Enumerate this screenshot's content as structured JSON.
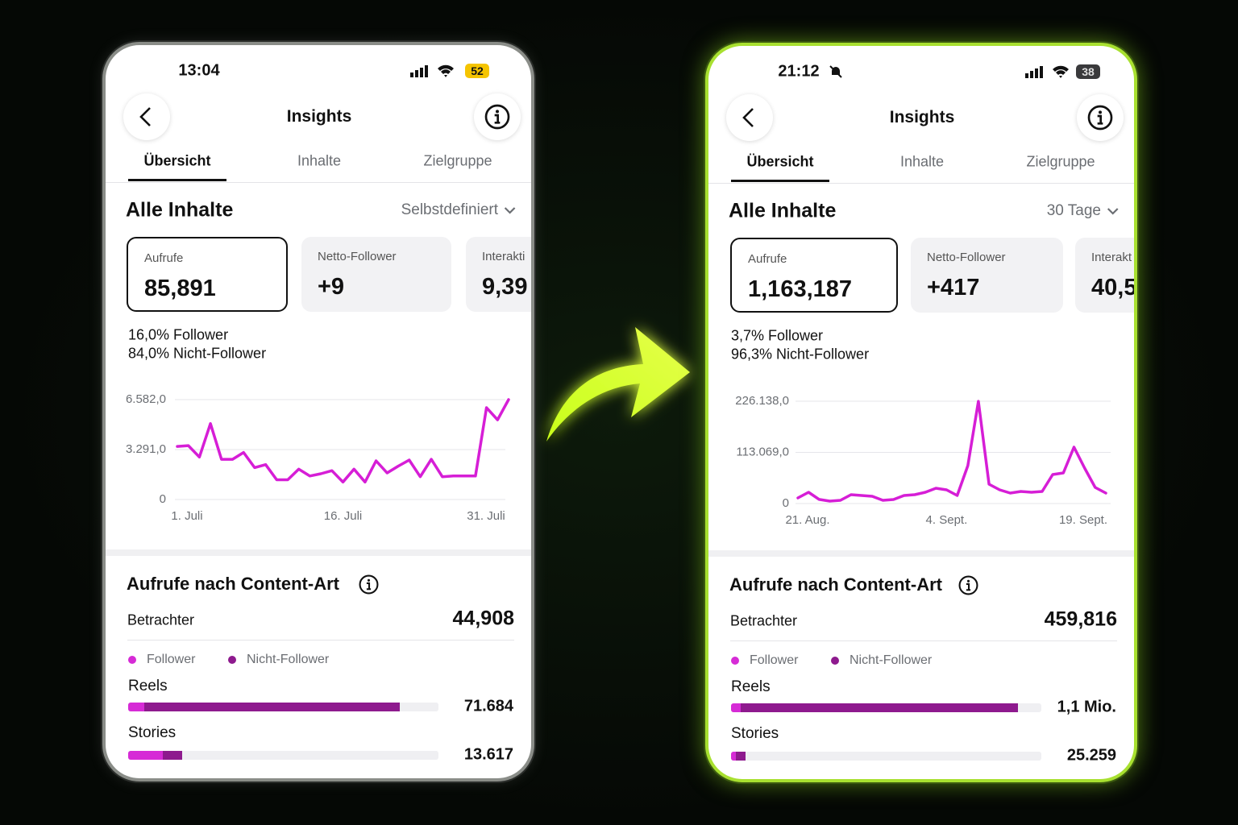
{
  "phones": [
    {
      "status": {
        "time": "13:04",
        "battery": "52"
      },
      "header": {
        "title": "Insights"
      },
      "tabs": [
        "Übersicht",
        "Inhalte",
        "Zielgruppe"
      ],
      "section": {
        "title": "Alle Inhalte",
        "filter": "Selbstdefiniert"
      },
      "cards": [
        {
          "label": "Aufrufe",
          "value": "85,891"
        },
        {
          "label": "Netto-Follower",
          "value": "+9"
        },
        {
          "label": "Interakti",
          "value": "9,39"
        }
      ],
      "audience": [
        "16,0% Follower",
        "84,0% Nicht-Follower"
      ],
      "chart": {
        "type": "line",
        "color": "#d61ed6",
        "categories": [
          "1. Juli",
          null,
          null,
          null,
          null,
          null,
          null,
          null,
          null,
          null,
          null,
          null,
          null,
          null,
          null,
          "16. Juli",
          null,
          null,
          null,
          null,
          null,
          null,
          null,
          null,
          null,
          null,
          null,
          null,
          null,
          null,
          "31. Juli"
        ],
        "values": [
          3500,
          3550,
          2800,
          5000,
          2650,
          2650,
          3100,
          2100,
          2300,
          1300,
          1300,
          2000,
          1550,
          1700,
          1900,
          1150,
          2000,
          1150,
          2550,
          1750,
          2200,
          2600,
          1500,
          2650,
          1500,
          1550,
          1550,
          1550,
          6050,
          5250,
          6582
        ],
        "ylim": [
          0,
          6582
        ],
        "yticks": [
          0,
          {
            "value": 3291,
            "label": "3.291,0"
          },
          {
            "value": 6582,
            "label": "6.582,0"
          }
        ],
        "grid": true
      },
      "content": {
        "title": "Aufrufe nach Content-Art",
        "viewers_label": "Betrachter",
        "viewers_value": "44,908",
        "legend": [
          {
            "name": "Follower",
            "color": "#d62bd6"
          },
          {
            "name": "Nicht-Follower",
            "color": "#8e1a8e"
          }
        ],
        "rows": [
          {
            "label": "Reels",
            "value": "71.684"
          },
          {
            "label": "Stories",
            "value": "13.617"
          }
        ]
      }
    },
    {
      "status": {
        "time": "21:12",
        "battery": "38"
      },
      "header": {
        "title": "Insights"
      },
      "tabs": [
        "Übersicht",
        "Inhalte",
        "Zielgruppe"
      ],
      "section": {
        "title": "Alle Inhalte",
        "filter": "30 Tage"
      },
      "cards": [
        {
          "label": "Aufrufe",
          "value": "1,163,187"
        },
        {
          "label": "Netto-Follower",
          "value": "+417"
        },
        {
          "label": "Interakt",
          "value": "40,5"
        }
      ],
      "audience": [
        "3,7% Follower",
        "96,3% Nicht-Follower"
      ],
      "chart": {
        "type": "line",
        "color": "#d61ed6",
        "categories": [
          "21. Aug.",
          null,
          null,
          null,
          null,
          null,
          null,
          null,
          null,
          null,
          null,
          null,
          null,
          null,
          "4. Sept.",
          null,
          null,
          null,
          null,
          null,
          null,
          null,
          null,
          null,
          null,
          null,
          null,
          null,
          null,
          "19. Sept."
        ],
        "values": [
          12500,
          25000,
          9000,
          5300,
          7100,
          19600,
          17800,
          16000,
          7100,
          8900,
          17800,
          19600,
          24900,
          33800,
          30300,
          17800,
          83700,
          226000,
          42700,
          30300,
          23100,
          26700,
          24900,
          26700,
          64100,
          67600,
          124600,
          78300,
          35600,
          23100
        ],
        "ylim": [
          0,
          226138
        ],
        "yticks": [
          0,
          {
            "value": 113069,
            "label": "113.069,0"
          },
          {
            "value": 226138,
            "label": "226.138,0"
          }
        ],
        "grid": true
      },
      "content": {
        "title": "Aufrufe nach Content-Art",
        "viewers_label": "Betrachter",
        "viewers_value": "459,816",
        "legend": [
          {
            "name": "Follower",
            "color": "#d62bd6"
          },
          {
            "name": "Nicht-Follower",
            "color": "#8e1a8e"
          }
        ],
        "rows": [
          {
            "label": "Reels",
            "value": "1,1 Mio."
          },
          {
            "label": "Stories",
            "value": "25.259"
          }
        ]
      }
    }
  ]
}
